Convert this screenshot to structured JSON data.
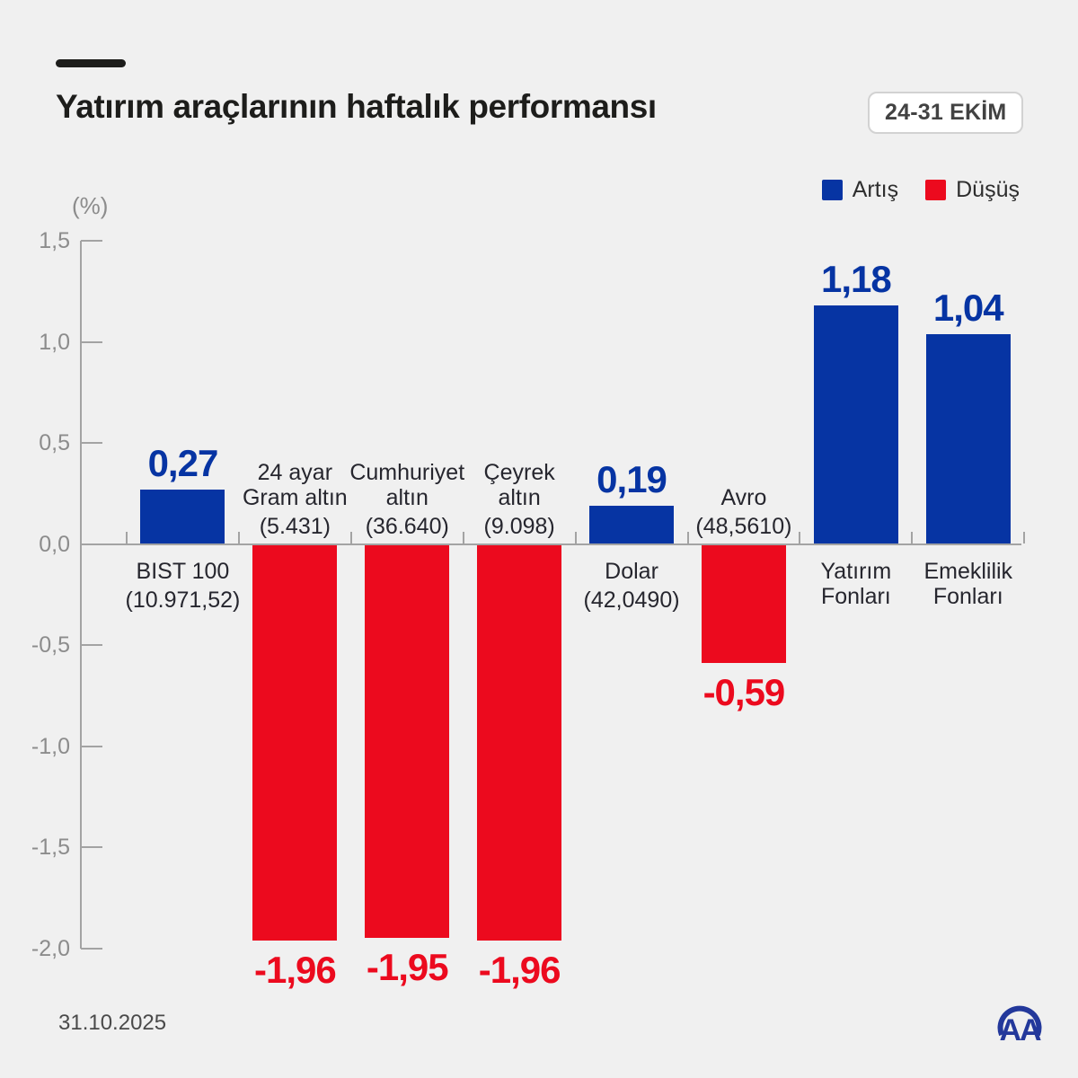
{
  "header": {
    "title": "Yatırım araçlarının haftalık performansı",
    "date_badge": "24-31 EKİM"
  },
  "footer": {
    "date": "31.10.2025",
    "logo": "AA"
  },
  "chart_data": {
    "type": "bar",
    "title": "Yatırım araçlarının haftalık performansı",
    "subtitle": "24-31 EKİM",
    "unit_label": "(%)",
    "xlabel": "",
    "ylabel": "(%)",
    "ylim": [
      -2.0,
      1.5
    ],
    "grid": false,
    "legend_position": "top-right",
    "legend": {
      "up": "Artış",
      "down": "Düşüş"
    },
    "colors": {
      "up": "#0634a3",
      "down": "#ec0a1e",
      "axis": "#a3a3a3"
    },
    "yticks": [
      1.5,
      1.0,
      0.5,
      0.0,
      -0.5,
      -1.0,
      -1.5,
      -2.0
    ],
    "ytick_labels": [
      "1,5",
      "1,0",
      "0,5",
      "0,0",
      "-0,5",
      "-1,0",
      "-1,5",
      "-2,0"
    ],
    "categories": [
      {
        "name_lines": [
          "BIST 100"
        ],
        "detail": "(10.971,52)",
        "value": 0.27,
        "value_label": "0,27"
      },
      {
        "name_lines": [
          "24 ayar",
          "Gram altın"
        ],
        "detail": "(5.431)",
        "value": -1.96,
        "value_label": "-1,96"
      },
      {
        "name_lines": [
          "Cumhuriyet",
          "altın"
        ],
        "detail": "(36.640)",
        "value": -1.95,
        "value_label": "-1,95"
      },
      {
        "name_lines": [
          "Çeyrek",
          "altın"
        ],
        "detail": "(9.098)",
        "value": -1.96,
        "value_label": "-1,96"
      },
      {
        "name_lines": [
          "Dolar"
        ],
        "detail": "(42,0490)",
        "value": 0.19,
        "value_label": "0,19"
      },
      {
        "name_lines": [
          "Avro"
        ],
        "detail": "(48,5610)",
        "value": -0.59,
        "value_label": "-0,59"
      },
      {
        "name_lines": [
          "Yatırım",
          "Fonları"
        ],
        "detail": "",
        "value": 1.18,
        "value_label": "1,18"
      },
      {
        "name_lines": [
          "Emeklilik",
          "Fonları"
        ],
        "detail": "",
        "value": 1.04,
        "value_label": "1,04"
      }
    ]
  }
}
